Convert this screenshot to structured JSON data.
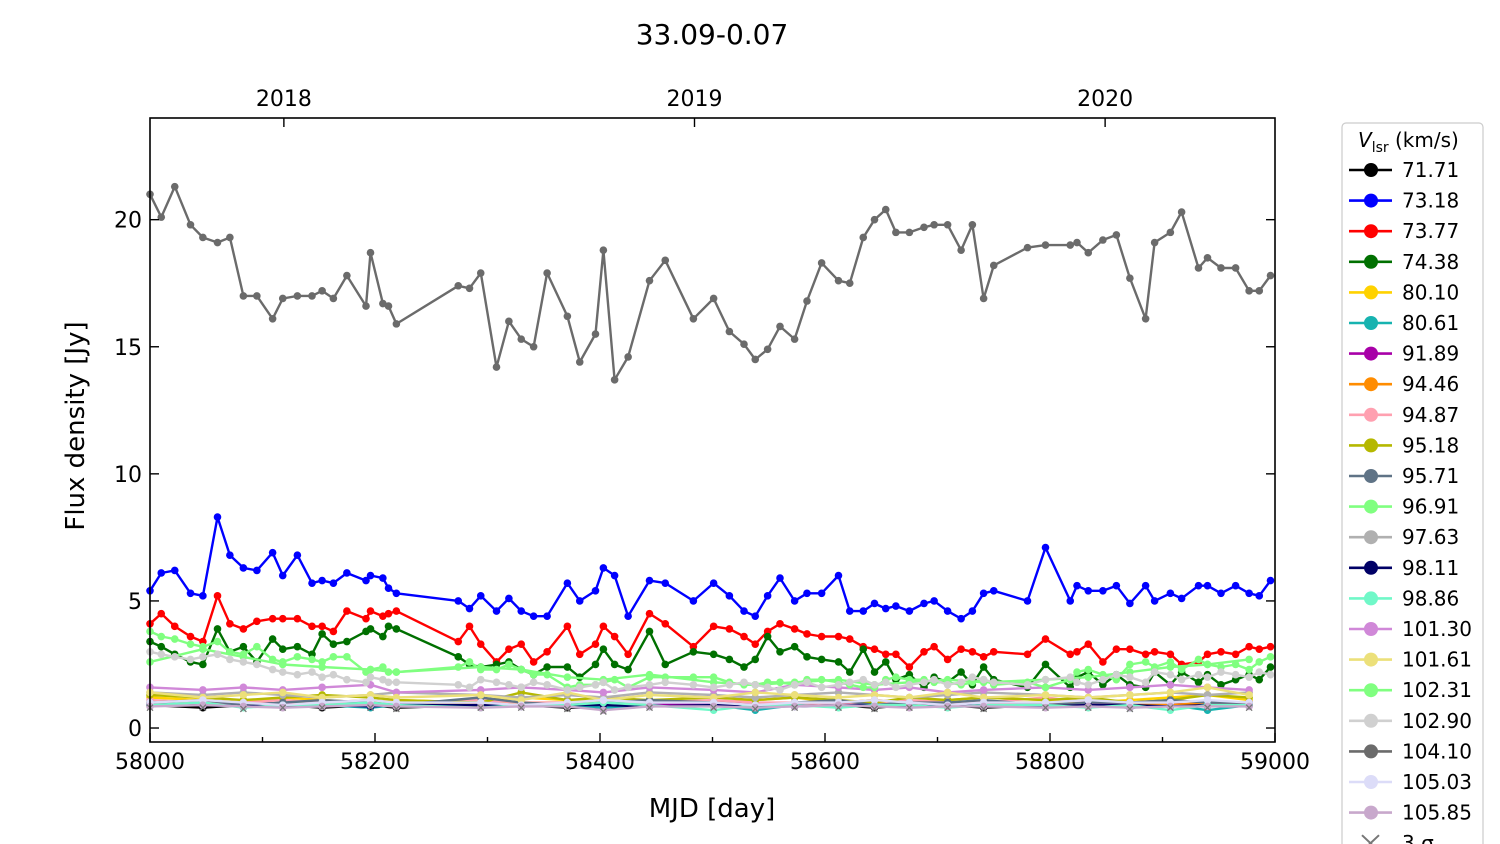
{
  "chart_data": {
    "type": "line",
    "title": "33.09-0.07",
    "xlabel": "MJD [day]",
    "ylabel": "Flux density [Jy]",
    "xlim": [
      58000,
      59000
    ],
    "ylim": [
      -0.55,
      24.0
    ],
    "xticks": [
      58000,
      58200,
      58400,
      58600,
      58800,
      59000
    ],
    "xtick_labels": [
      "58000",
      "58200",
      "58400",
      "58600",
      "58800",
      "59000"
    ],
    "yticks": [
      0,
      5,
      10,
      15,
      20
    ],
    "ytick_labels": [
      "0",
      "5",
      "10",
      "15",
      "20"
    ],
    "top_axis": {
      "labels": [
        "2018",
        "2019",
        "2020"
      ],
      "mjd": [
        58119,
        58484,
        58849
      ]
    },
    "grid": false,
    "legend": {
      "placement": "outside-right",
      "title_var": "V",
      "title_sub": "lsr",
      "title_unit": " (km/s)"
    },
    "mjd": [
      58000,
      58010,
      58022,
      58036,
      58047,
      58060,
      58071,
      58083,
      58095,
      58109,
      58118,
      58131,
      58144,
      58153,
      58163,
      58175,
      58192,
      58196,
      58207,
      58212,
      58219,
      58274,
      58284,
      58294,
      58308,
      58319,
      58330,
      58341,
      58353,
      58371,
      58382,
      58396,
      58403,
      58413,
      58425,
      58444,
      58458,
      58483,
      58501,
      58515,
      58528,
      58538,
      58549,
      58560,
      58573,
      58584,
      58597,
      58612,
      58622,
      58634,
      58644,
      58654,
      58663,
      58675,
      58688,
      58697,
      58709,
      58721,
      58731,
      58741,
      58750,
      58780,
      58796,
      58818,
      58824,
      58834,
      58847,
      58859,
      58871,
      58885,
      58893,
      58907,
      58917,
      58932,
      58940,
      58952,
      58965,
      58977,
      58986,
      58996
    ],
    "mjd_sparse": [
      58000,
      58047,
      58083,
      58118,
      58153,
      58196,
      58219,
      58294,
      58330,
      58371,
      58403,
      58444,
      58501,
      58538,
      58573,
      58612,
      58644,
      58675,
      58709,
      58741,
      58796,
      58834,
      58871,
      58907,
      58940,
      58977
    ],
    "series": [
      {
        "name": "71.71",
        "color": "#000000",
        "sparse": true,
        "values": [
          0.9,
          0.8,
          0.9,
          0.9,
          0.8,
          0.9,
          0.8,
          0.9,
          0.9,
          0.8,
          0.8,
          0.9,
          0.9,
          0.8,
          0.9,
          0.9,
          0.8,
          0.9,
          0.9,
          0.8,
          0.9,
          0.9,
          0.8,
          0.9,
          0.9,
          0.9
        ]
      },
      {
        "name": "73.18",
        "color": "#0000ff",
        "values": [
          5.4,
          6.1,
          6.2,
          5.3,
          5.2,
          8.3,
          6.8,
          6.3,
          6.2,
          6.9,
          6.0,
          6.8,
          5.7,
          5.8,
          5.7,
          6.1,
          5.8,
          6.0,
          5.9,
          5.5,
          5.3,
          5.0,
          4.7,
          5.2,
          4.6,
          5.1,
          4.6,
          4.4,
          4.4,
          5.7,
          5.0,
          5.4,
          6.3,
          6.0,
          4.4,
          5.8,
          5.7,
          5.0,
          5.7,
          5.2,
          4.6,
          4.4,
          5.2,
          5.9,
          5.0,
          5.3,
          5.3,
          6.0,
          4.6,
          4.6,
          4.9,
          4.7,
          4.8,
          4.6,
          4.9,
          5.0,
          4.6,
          4.3,
          4.6,
          5.3,
          5.4,
          5.0,
          7.1,
          5.0,
          5.6,
          5.4,
          5.4,
          5.6,
          4.9,
          5.6,
          5.0,
          5.3,
          5.1,
          5.6,
          5.6,
          5.3,
          5.6,
          5.3,
          5.2,
          5.8
        ]
      },
      {
        "name": "73.77",
        "color": "#ff0000",
        "values": [
          4.1,
          4.5,
          4.0,
          3.6,
          3.4,
          5.2,
          4.1,
          3.9,
          4.2,
          4.3,
          4.3,
          4.3,
          4.0,
          4.0,
          3.8,
          4.6,
          4.3,
          4.6,
          4.4,
          4.5,
          4.6,
          3.4,
          4.0,
          3.3,
          2.6,
          3.1,
          3.3,
          2.6,
          3.0,
          4.0,
          2.9,
          3.3,
          4.0,
          3.6,
          2.9,
          4.5,
          4.1,
          3.2,
          4.0,
          3.9,
          3.6,
          3.3,
          3.8,
          4.1,
          3.9,
          3.7,
          3.6,
          3.6,
          3.5,
          3.2,
          3.1,
          2.9,
          2.9,
          2.4,
          3.0,
          3.2,
          2.7,
          3.1,
          3.0,
          2.8,
          3.0,
          2.9,
          3.5,
          2.9,
          3.0,
          3.3,
          2.6,
          3.1,
          3.1,
          2.9,
          3.0,
          2.9,
          2.5,
          2.6,
          2.9,
          3.0,
          2.9,
          3.2,
          3.1,
          3.2
        ]
      },
      {
        "name": "74.38",
        "color": "#007000",
        "values": [
          3.4,
          3.2,
          2.9,
          2.6,
          2.5,
          3.9,
          3.0,
          3.2,
          2.6,
          3.5,
          3.1,
          3.2,
          2.9,
          3.7,
          3.3,
          3.4,
          3.8,
          3.9,
          3.6,
          4.0,
          3.9,
          2.8,
          2.5,
          2.4,
          2.5,
          2.6,
          2.3,
          2.1,
          2.4,
          2.4,
          2.0,
          2.5,
          3.1,
          2.5,
          2.3,
          3.8,
          2.5,
          3.0,
          2.9,
          2.7,
          2.4,
          2.7,
          3.6,
          3.0,
          3.2,
          2.8,
          2.7,
          2.6,
          2.2,
          3.1,
          2.2,
          2.6,
          1.9,
          2.1,
          1.6,
          2.0,
          1.8,
          2.2,
          1.7,
          2.4,
          1.9,
          1.6,
          2.5,
          1.6,
          2.0,
          2.2,
          1.7,
          2.1,
          1.7,
          1.6,
          2.2,
          1.7,
          2.2,
          1.8,
          2.1,
          1.7,
          1.9,
          2.1,
          1.9,
          2.4
        ]
      },
      {
        "name": "80.10",
        "color": "#ffd200",
        "sparse": true,
        "values": [
          1.2,
          1.1,
          1.0,
          1.2,
          1.1,
          1.0,
          1.1,
          1.0,
          1.2,
          1.1,
          1.0,
          1.1,
          1.0,
          1.1,
          1.2,
          1.0,
          1.1,
          1.0,
          1.1,
          1.2,
          1.1,
          1.0,
          1.1,
          1.2,
          1.3,
          1.1
        ]
      },
      {
        "name": "80.61",
        "color": "#17b3b0",
        "sparse": true,
        "values": [
          1.0,
          0.9,
          0.9,
          1.0,
          0.9,
          0.8,
          0.9,
          1.0,
          0.9,
          0.9,
          0.8,
          0.9,
          0.9,
          0.7,
          0.9,
          0.9,
          1.0,
          0.9,
          0.9,
          0.9,
          1.0,
          0.9,
          0.8,
          0.9,
          0.7,
          0.9
        ]
      },
      {
        "name": "91.89",
        "color": "#a800a8",
        "sparse": true,
        "values": [
          0.95,
          0.9,
          1.0,
          0.95,
          0.9,
          1.0,
          0.9,
          0.95,
          1.0,
          0.9,
          0.95,
          0.9,
          1.0,
          0.95,
          0.9,
          1.0,
          0.9,
          0.95,
          1.0,
          0.9,
          0.95,
          0.9,
          1.0,
          0.95,
          0.9,
          1.0
        ]
      },
      {
        "name": "94.46",
        "color": "#ff8c00",
        "sparse": true,
        "values": [
          1.0,
          1.1,
          1.0,
          0.9,
          1.0,
          1.1,
          1.0,
          0.9,
          1.0,
          1.0,
          0.9,
          1.1,
          1.0,
          0.9,
          1.0,
          1.0,
          1.1,
          1.0,
          0.9,
          1.0,
          1.0,
          1.1,
          1.0,
          0.9,
          1.0,
          1.0
        ]
      },
      {
        "name": "94.87",
        "color": "#ffa0b0",
        "sparse": true,
        "values": [
          1.1,
          1.0,
          1.0,
          1.1,
          1.0,
          0.9,
          1.0,
          1.1,
          1.0,
          1.0,
          0.9,
          1.0,
          1.1,
          1.0,
          1.0,
          0.9,
          1.0,
          1.1,
          1.0,
          1.0,
          1.2,
          1.0,
          1.0,
          1.1,
          1.0,
          1.0
        ]
      },
      {
        "name": "95.18",
        "color": "#b5b800",
        "sparse": true,
        "values": [
          1.3,
          1.2,
          1.1,
          1.2,
          1.3,
          1.2,
          1.1,
          1.0,
          1.4,
          1.1,
          1.2,
          1.1,
          1.2,
          1.1,
          1.2,
          1.1,
          1.0,
          1.2,
          1.1,
          1.2,
          1.1,
          1.2,
          1.0,
          1.1,
          1.3,
          1.2
        ]
      },
      {
        "name": "95.71",
        "color": "#5f7386",
        "sparse": true,
        "values": [
          1.0,
          1.1,
          0.9,
          1.0,
          1.1,
          1.0,
          0.9,
          1.2,
          1.0,
          0.9,
          1.0,
          1.1,
          1.0,
          0.8,
          1.0,
          1.1,
          0.9,
          1.0,
          1.0,
          1.1,
          0.9,
          1.0,
          1.0,
          1.1,
          1.0,
          1.0
        ]
      },
      {
        "name": "96.91",
        "color": "#80ff80",
        "sparse": true,
        "values": [
          2.6,
          3.1,
          2.8,
          2.5,
          2.4,
          2.3,
          2.2,
          2.4,
          2.3,
          2.0,
          1.9,
          2.1,
          1.8,
          1.7,
          1.8,
          1.9,
          1.7,
          1.8,
          1.9,
          1.8,
          1.9,
          2.0,
          2.2,
          2.4,
          2.5,
          2.7
        ]
      },
      {
        "name": "97.63",
        "color": "#b0b0b0",
        "sparse": true,
        "values": [
          1.4,
          1.3,
          1.4,
          1.3,
          1.2,
          1.3,
          1.4,
          1.3,
          1.2,
          1.3,
          1.2,
          1.4,
          1.3,
          1.2,
          1.3,
          1.4,
          1.3,
          1.2,
          1.3,
          1.4,
          1.3,
          1.2,
          1.3,
          1.4,
          1.3,
          1.4
        ]
      },
      {
        "name": "98.11",
        "color": "#000066",
        "sparse": true,
        "values": [
          0.9,
          0.9,
          0.85,
          0.9,
          0.9,
          0.85,
          0.9,
          0.9,
          0.85,
          0.9,
          0.9,
          0.85,
          0.9,
          0.9,
          0.85,
          0.9,
          0.9,
          0.85,
          0.9,
          0.9,
          0.85,
          0.9,
          0.9,
          0.85,
          0.9,
          0.9
        ]
      },
      {
        "name": "98.86",
        "color": "#70f8c8",
        "sparse": true,
        "values": [
          0.9,
          1.0,
          0.8,
          0.9,
          0.9,
          1.0,
          0.9,
          0.8,
          0.9,
          0.9,
          1.0,
          0.9,
          0.7,
          0.9,
          0.9,
          0.8,
          0.9,
          0.9,
          0.8,
          0.9,
          0.9,
          0.8,
          0.9,
          0.7,
          0.9,
          0.9
        ]
      },
      {
        "name": "101.30",
        "color": "#d088d8",
        "sparse": true,
        "values": [
          1.6,
          1.5,
          1.6,
          1.5,
          1.6,
          1.7,
          1.4,
          1.5,
          1.6,
          1.5,
          1.4,
          1.6,
          1.5,
          1.4,
          1.7,
          1.6,
          1.5,
          1.6,
          1.4,
          1.5,
          1.6,
          1.5,
          1.6,
          1.7,
          1.6,
          1.5
        ]
      },
      {
        "name": "101.61",
        "color": "#ece07a",
        "sparse": true,
        "values": [
          1.4,
          1.2,
          1.3,
          1.4,
          1.2,
          1.3,
          1.2,
          1.3,
          1.1,
          1.4,
          1.1,
          1.3,
          1.2,
          1.4,
          1.3,
          1.2,
          1.3,
          1.2,
          1.4,
          1.2,
          1.3,
          1.2,
          1.3,
          1.4,
          1.6,
          1.3
        ]
      },
      {
        "name": "102.31",
        "color": "#80ff80",
        "values": [
          3.8,
          3.6,
          3.5,
          3.3,
          3.2,
          3.4,
          3.0,
          2.9,
          3.2,
          2.7,
          2.6,
          2.8,
          2.7,
          2.6,
          2.8,
          2.8,
          2.2,
          2.3,
          2.4,
          2.2,
          2.2,
          2.4,
          2.6,
          2.3,
          2.3,
          2.5,
          2.3,
          2.1,
          2.1,
          1.6,
          1.7,
          1.7,
          1.8,
          1.9,
          1.6,
          2.0,
          2.0,
          2.0,
          2.0,
          1.8,
          1.7,
          1.7,
          1.8,
          1.8,
          1.7,
          1.9,
          1.9,
          1.8,
          1.7,
          1.6,
          1.6,
          1.9,
          2.0,
          1.9,
          1.9,
          1.8,
          1.8,
          1.7,
          1.8,
          1.9,
          1.7,
          1.8,
          1.6,
          1.9,
          2.2,
          2.3,
          2.1,
          1.9,
          2.5,
          2.6,
          2.4,
          2.6,
          2.3,
          2.7,
          2.5,
          2.4,
          2.5,
          2.3,
          2.6,
          2.8
        ]
      },
      {
        "name": "102.90",
        "color": "#d0d0d0",
        "values": [
          3.0,
          2.9,
          2.8,
          2.7,
          2.8,
          2.9,
          2.7,
          2.6,
          2.5,
          2.3,
          2.2,
          2.1,
          2.2,
          2.0,
          2.1,
          1.9,
          1.8,
          2.0,
          1.9,
          1.8,
          1.8,
          1.7,
          1.6,
          1.9,
          1.8,
          1.7,
          1.6,
          1.8,
          1.7,
          1.5,
          1.6,
          1.7,
          1.8,
          1.5,
          1.6,
          1.7,
          1.8,
          1.7,
          1.6,
          1.7,
          1.8,
          1.7,
          1.6,
          1.5,
          1.7,
          1.8,
          1.6,
          1.7,
          1.8,
          1.9,
          1.7,
          1.8,
          1.6,
          1.7,
          1.8,
          1.9,
          1.7,
          1.8,
          2.0,
          1.9,
          1.8,
          1.7,
          1.9,
          2.0,
          1.8,
          1.7,
          1.9,
          2.1,
          2.0,
          1.8,
          2.2,
          2.1,
          1.9,
          2.1,
          2.0,
          2.2,
          2.1,
          2.0,
          2.2,
          2.1
        ]
      },
      {
        "name": "104.10",
        "color": "#6b6b6b",
        "values": [
          21.0,
          20.1,
          21.3,
          19.8,
          19.3,
          19.1,
          19.3,
          17.0,
          17.0,
          16.1,
          16.9,
          17.0,
          17.0,
          17.2,
          16.9,
          17.8,
          16.6,
          18.7,
          16.7,
          16.6,
          15.9,
          17.4,
          17.3,
          17.9,
          14.2,
          16.0,
          15.3,
          15.0,
          17.9,
          16.2,
          14.4,
          15.5,
          18.8,
          13.7,
          14.6,
          17.6,
          18.4,
          16.1,
          16.9,
          15.6,
          15.1,
          14.5,
          14.9,
          15.8,
          15.3,
          16.8,
          18.3,
          17.6,
          17.5,
          19.3,
          20.0,
          20.4,
          19.5,
          19.5,
          19.7,
          19.8,
          19.8,
          18.8,
          19.8,
          16.9,
          18.2,
          18.9,
          19.0,
          19.0,
          19.1,
          18.7,
          19.2,
          19.4,
          17.7,
          16.1,
          19.1,
          19.5,
          20.3,
          18.1,
          18.5,
          18.1,
          18.1,
          17.2,
          17.2,
          17.8
        ]
      },
      {
        "name": "105.03",
        "color": "#dcdcf8",
        "sparse": true,
        "values": [
          1.0,
          1.1,
          1.0,
          0.9,
          1.0,
          1.1,
          1.0,
          1.0,
          0.9,
          1.0,
          1.1,
          1.0,
          1.0,
          0.9,
          1.0,
          1.0,
          1.1,
          1.0,
          0.9,
          1.0,
          1.0,
          1.1,
          1.0,
          1.0,
          1.1,
          1.0
        ]
      },
      {
        "name": "105.85",
        "color": "#c8a8cc",
        "sparse": true,
        "values": [
          0.85,
          0.9,
          0.85,
          0.8,
          0.85,
          0.9,
          0.85,
          0.8,
          0.85,
          0.85,
          0.7,
          0.85,
          0.85,
          0.8,
          0.85,
          0.9,
          0.85,
          0.8,
          0.85,
          0.85,
          0.8,
          0.85,
          0.8,
          0.85,
          0.85,
          0.85
        ]
      }
    ],
    "sigma": {
      "name": "3 σ",
      "color": "#777777",
      "values": [
        0.8,
        0.8,
        0.75,
        0.8,
        0.8,
        0.8,
        0.75,
        0.8,
        0.8,
        0.75,
        0.65,
        0.8,
        0.8,
        0.75,
        0.8,
        0.8,
        0.75,
        0.8,
        0.8,
        0.75,
        0.8,
        0.8,
        0.75,
        0.8,
        0.8,
        0.8
      ]
    }
  }
}
